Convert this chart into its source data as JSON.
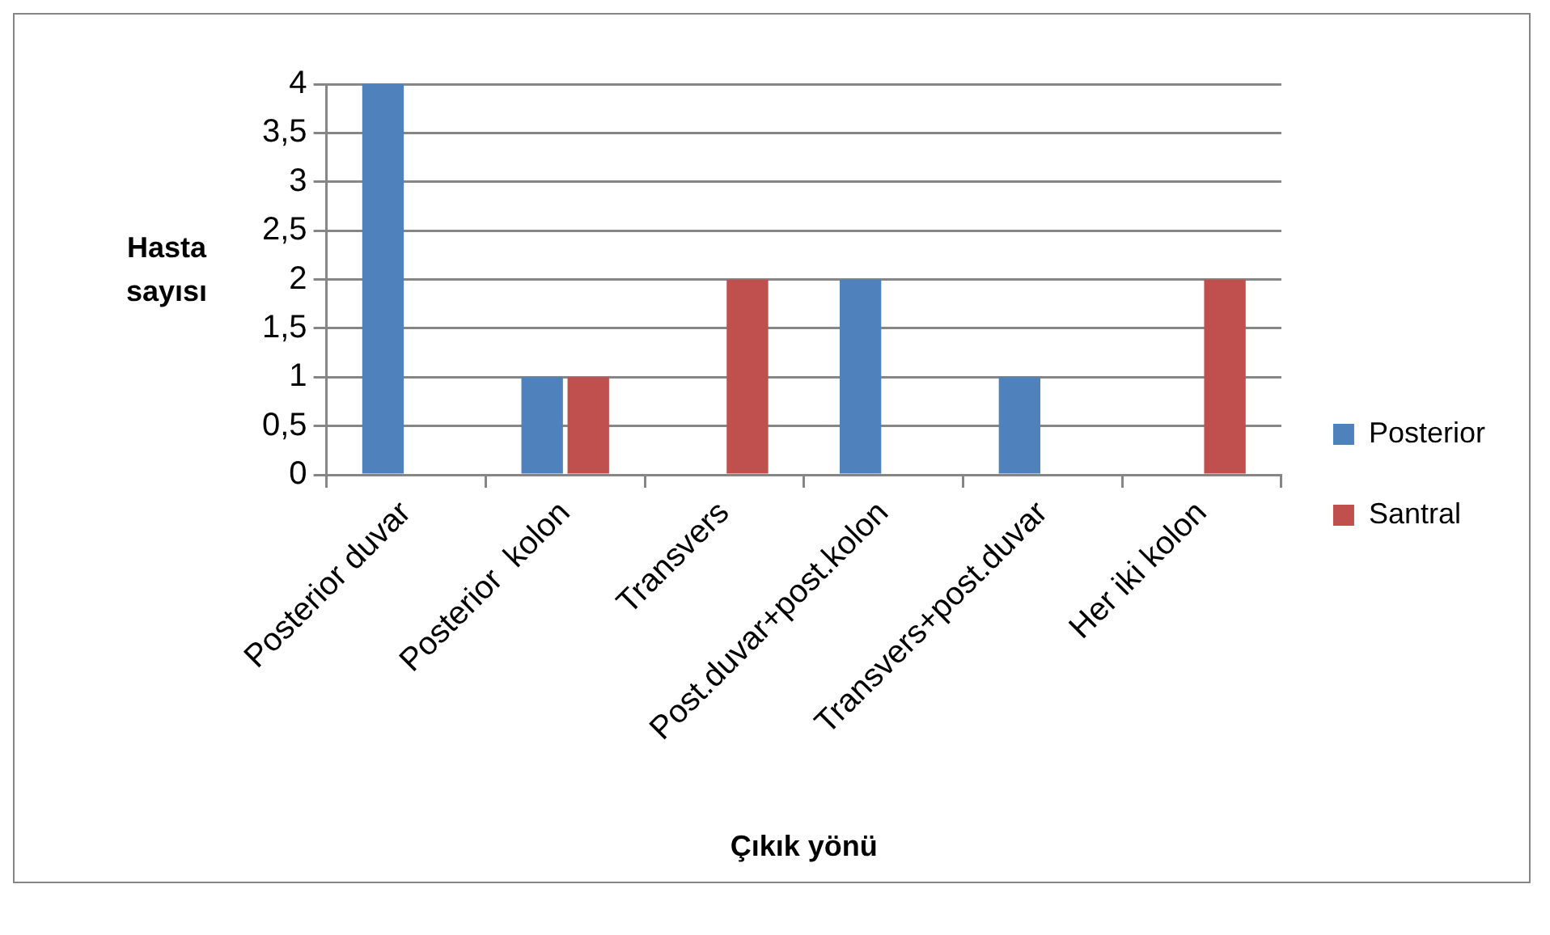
{
  "chart_data": {
    "type": "bar",
    "xlabel": "Çıkık yönü",
    "ylabel": "Hasta sayısı",
    "categories": [
      "Posterior duvar",
      "Posterior  kolon",
      "Transvers",
      "Post.duvar+post.kolon",
      "Transvers+post.duvar",
      "Her iki kolon"
    ],
    "series": [
      {
        "name": "Posterior",
        "color": "#4f81bd",
        "values": [
          4,
          1,
          0,
          2,
          1,
          0
        ]
      },
      {
        "name": "Santral",
        "color": "#c0504d",
        "values": [
          0,
          1,
          2,
          0,
          0,
          2
        ]
      }
    ],
    "ylim": [
      0,
      4
    ],
    "yticks": [
      0,
      {
        "value": 0.5,
        "label": "0,5"
      },
      1,
      {
        "value": 1.5,
        "label": "1,5"
      },
      2,
      {
        "value": 2.5,
        "label": "2,5"
      },
      3,
      {
        "value": 3.5,
        "label": "3,5"
      },
      4
    ],
    "grid": "y",
    "legend": "right"
  }
}
